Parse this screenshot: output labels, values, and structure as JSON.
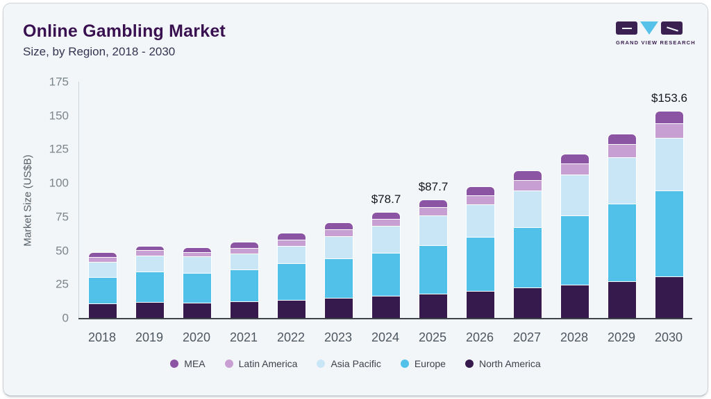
{
  "header": {
    "title": "Online Gambling Market",
    "subtitle": "Size, by Region, 2018 - 2030"
  },
  "logo": {
    "brand": "GRAND VIEW RESEARCH",
    "block_color": "#3b2152",
    "triangle_color": "#56c2e9"
  },
  "chart_data": {
    "type": "bar",
    "stacked": true,
    "title": "Online Gambling Market Size, by Region, 2018 - 2030",
    "xlabel": "",
    "ylabel": "Market Size (US$B)",
    "ylim": [
      0,
      175
    ],
    "yticks": [
      0,
      25,
      50,
      75,
      100,
      125,
      150,
      175
    ],
    "grid": false,
    "legend_position": "bottom",
    "categories": [
      "2018",
      "2019",
      "2020",
      "2021",
      "2022",
      "2023",
      "2024",
      "2025",
      "2026",
      "2027",
      "2028",
      "2029",
      "2030"
    ],
    "series": [
      {
        "name": "North America",
        "color": "#36194d",
        "values": [
          10.7,
          11.9,
          11.4,
          12.4,
          13.1,
          14.8,
          16.5,
          18.2,
          19.9,
          22.8,
          24.8,
          27.4,
          31.0
        ]
      },
      {
        "name": "Europe",
        "color": "#52c1ea",
        "values": [
          19.8,
          22.4,
          22.0,
          23.3,
          27.7,
          29.2,
          31.8,
          35.7,
          40.0,
          44.4,
          51.1,
          57.1,
          63.5
        ]
      },
      {
        "name": "Asia Pacific",
        "color": "#c9e6f7",
        "values": [
          11.2,
          12.1,
          12.2,
          11.9,
          12.8,
          16.7,
          19.9,
          22.1,
          24.4,
          27.2,
          30.2,
          34.7,
          38.8
        ]
      },
      {
        "name": "Latin America",
        "color": "#c89fd2",
        "values": [
          3.5,
          3.8,
          3.4,
          4.3,
          4.6,
          5.1,
          5.3,
          6.0,
          6.7,
          7.6,
          8.2,
          9.7,
          10.9
        ]
      },
      {
        "name": "MEA",
        "color": "#8b55a4",
        "values": [
          3.6,
          3.3,
          3.5,
          4.7,
          5.2,
          4.8,
          5.2,
          5.7,
          6.4,
          7.2,
          7.5,
          7.8,
          9.4
        ]
      }
    ],
    "totals": [
      48.8,
      53.5,
      52.5,
      56.6,
      63.4,
      70.6,
      78.7,
      87.7,
      97.4,
      109.2,
      121.8,
      136.7,
      153.6
    ],
    "annotations": {
      "2024": "$78.7",
      "2025": "$87.7",
      "2030": "$153.6"
    },
    "legend_order": [
      "MEA",
      "Latin America",
      "Asia Pacific",
      "Europe",
      "North America"
    ]
  }
}
